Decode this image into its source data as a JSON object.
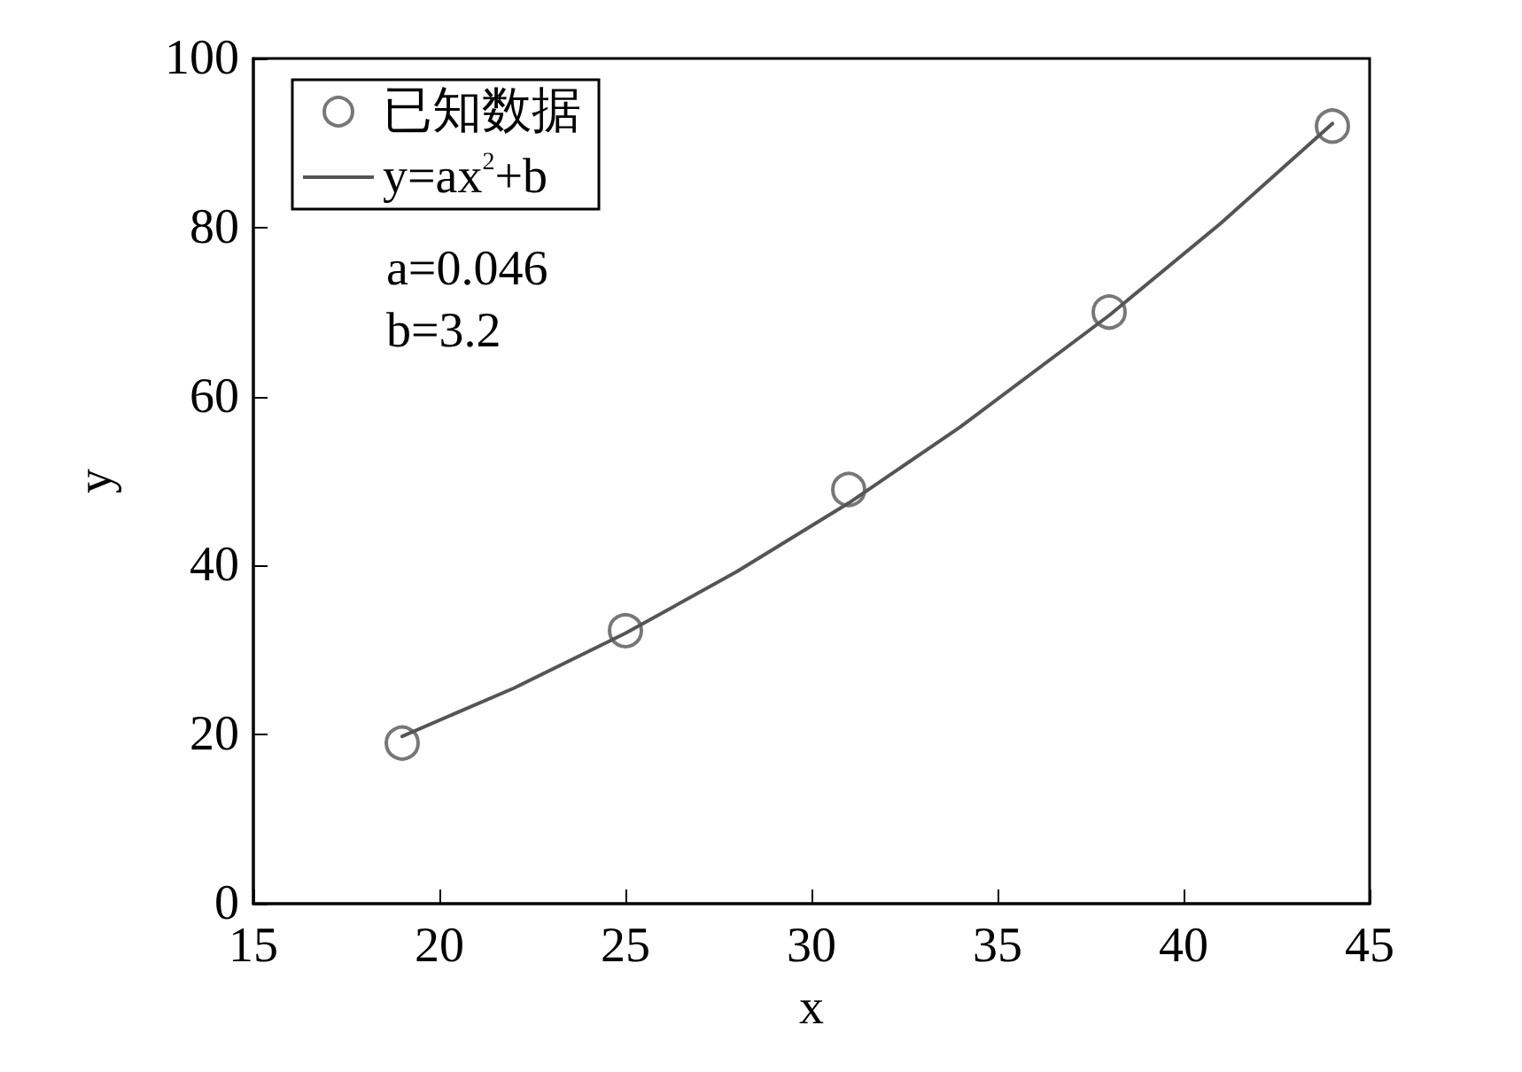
{
  "chart_data": {
    "type": "scatter",
    "xlabel": "x",
    "ylabel": "y",
    "xlim": [
      15,
      45
    ],
    "xticks": [
      15,
      20,
      25,
      30,
      35,
      40,
      45
    ],
    "ylim": [
      0,
      100
    ],
    "yticks": [
      0,
      20,
      40,
      60,
      80,
      100
    ],
    "grid": false,
    "legend": "top left",
    "annotations": [
      "a=0.046",
      "b=3.2"
    ],
    "series": [
      {
        "name": "已知数据",
        "marker": "circle",
        "color": "#555555",
        "x": [
          19,
          25,
          31,
          38,
          44
        ],
        "values": [
          19,
          32.3,
          49,
          70,
          92
        ]
      },
      {
        "name": "y=ax$^{2}$+b",
        "type": "line",
        "marker": "none",
        "line_style": "solid",
        "color": "#555555",
        "x": [
          19,
          22,
          25,
          28,
          31,
          34,
          38,
          41,
          44
        ],
        "values": [
          19.8,
          25.5,
          32,
          39.3,
          47.4,
          56.4,
          69.6,
          80.5,
          92.3
        ]
      }
    ]
  }
}
